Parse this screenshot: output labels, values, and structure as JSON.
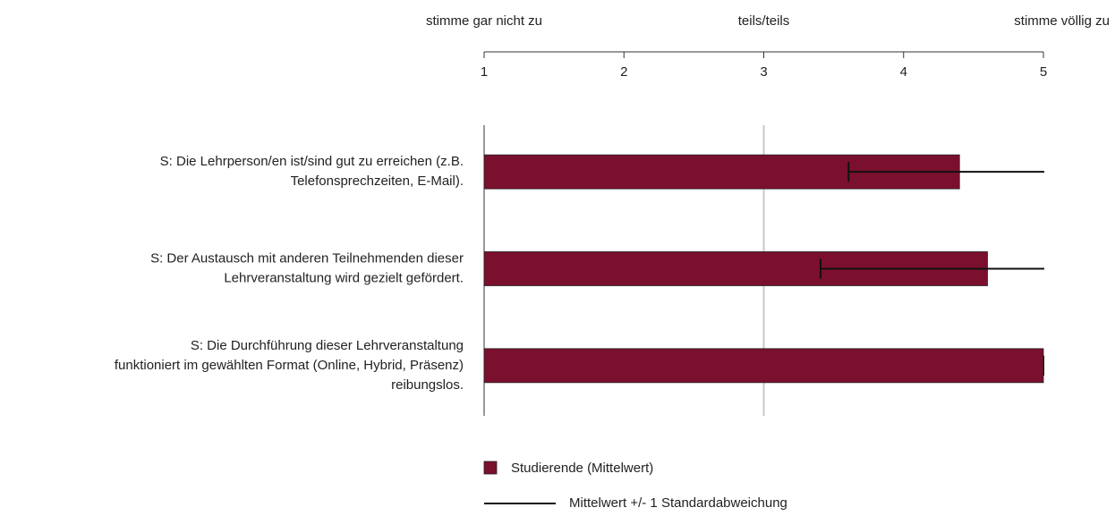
{
  "chart_data": {
    "type": "bar",
    "orientation": "horizontal",
    "categories": [
      [
        "S: Die Lehrperson/en ist/sind gut zu erreichen (z.B.",
        "Telefonsprechzeiten, E-Mail)."
      ],
      [
        "S: Der Austausch mit anderen Teilnehmenden dieser",
        "Lehrveranstaltung wird gezielt gefördert."
      ],
      [
        "S: Die Durchführung dieser Lehrveranstaltung",
        "funktioniert im gewählten Format (Online, Hybrid, Präsenz)",
        "reibungslos."
      ]
    ],
    "series": [
      {
        "name": "Studierende (Mittelwert)",
        "color": "#7b0f2e",
        "values": [
          4.4,
          4.6,
          5.0
        ],
        "errors": [
          0.8,
          1.2,
          0
        ]
      }
    ],
    "error_label": "Mittelwert +/- 1 Standardabweichung",
    "xlim": [
      1,
      5
    ],
    "xticks": [
      1,
      2,
      3,
      4,
      5
    ],
    "scale_labels": [
      {
        "value": 1,
        "label": "stimme gar nicht zu"
      },
      {
        "value": 3,
        "label": "teils/teils"
      },
      {
        "value": 5,
        "label": "stimme völlig zu"
      }
    ],
    "grid_at": [
      3
    ]
  }
}
